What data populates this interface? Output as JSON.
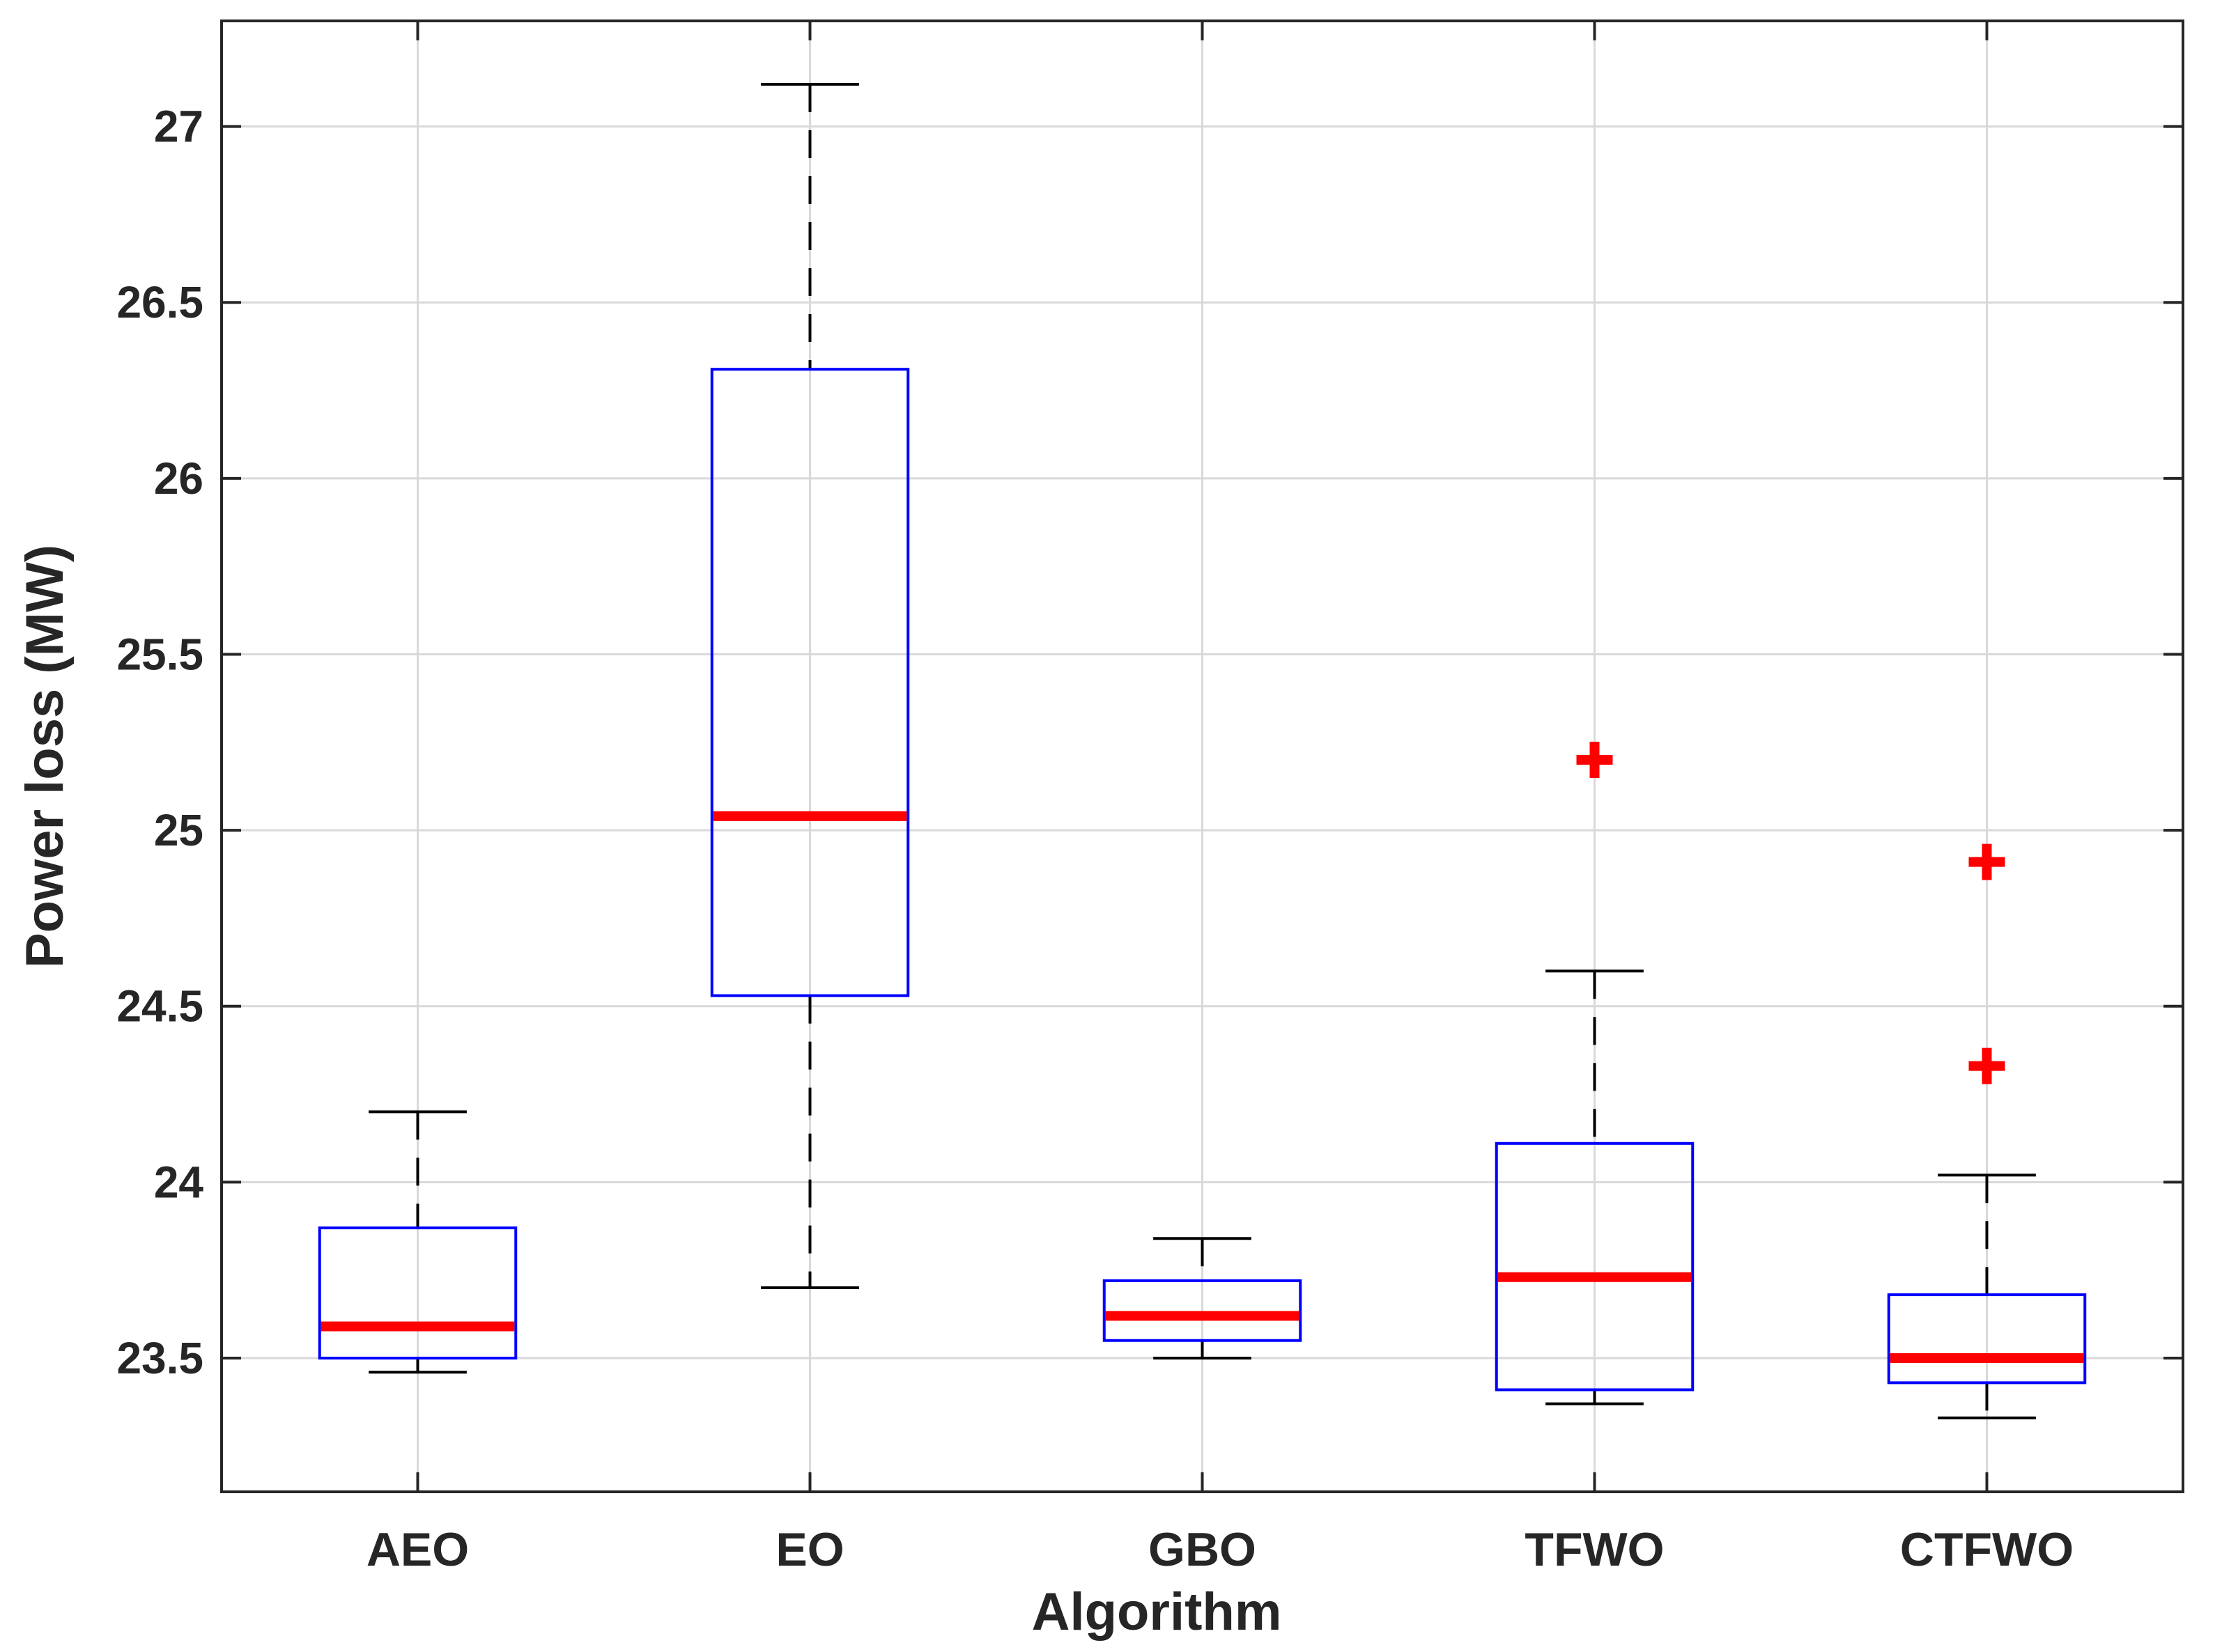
{
  "chart_data": {
    "type": "box",
    "title": "",
    "xlabel": "Algorithm",
    "ylabel": "Power loss (MW)",
    "ylim": [
      23.12,
      27.3
    ],
    "yticks": [
      23.5,
      24,
      24.5,
      25,
      25.5,
      26,
      26.5,
      27
    ],
    "ytick_labels": [
      "23.5",
      "24",
      "24.5",
      "25",
      "25.5",
      "26",
      "26.5",
      "27"
    ],
    "grid": true,
    "colors": {
      "box": "#0000ff",
      "median": "#ff0000",
      "whisker": "#000000",
      "outlier": "#ff0000",
      "grid": "#d9d9d9",
      "axis": "#262626"
    },
    "categories": [
      "AEO",
      "EO",
      "GBO",
      "TFWO",
      "CTFWO"
    ],
    "boxes": [
      {
        "name": "AEO",
        "whisker_low": 23.46,
        "q1": 23.5,
        "median": 23.59,
        "q3": 23.87,
        "whisker_high": 24.2,
        "outliers": []
      },
      {
        "name": "EO",
        "whisker_low": 23.7,
        "q1": 24.53,
        "median": 25.04,
        "q3": 26.31,
        "whisker_high": 27.12,
        "outliers": []
      },
      {
        "name": "GBO",
        "whisker_low": 23.5,
        "q1": 23.55,
        "median": 23.62,
        "q3": 23.72,
        "whisker_high": 23.84,
        "outliers": []
      },
      {
        "name": "TFWO",
        "whisker_low": 23.37,
        "q1": 23.41,
        "median": 23.73,
        "q3": 24.11,
        "whisker_high": 24.6,
        "outliers": [
          25.2
        ]
      },
      {
        "name": "CTFWO",
        "whisker_low": 23.33,
        "q1": 23.43,
        "median": 23.5,
        "q3": 23.68,
        "whisker_high": 24.02,
        "outliers": [
          24.91,
          24.33
        ]
      }
    ]
  }
}
